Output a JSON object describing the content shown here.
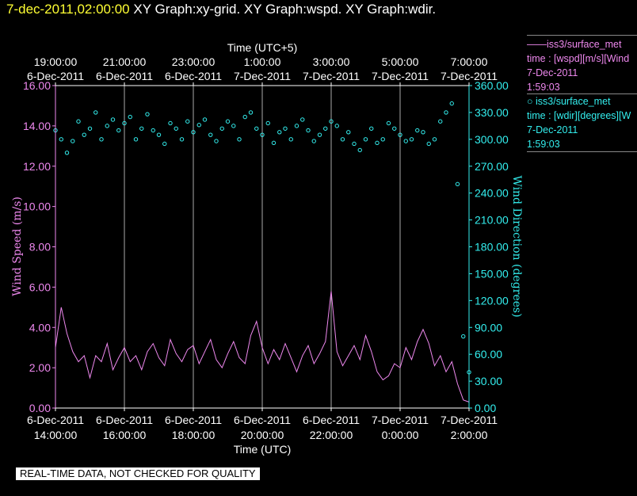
{
  "header": {
    "timestamp": "7-dec-2011,02:00:00",
    "graphs": "XY Graph:xy-grid.  XY Graph:wspd.  XY Graph:wdir."
  },
  "legend": {
    "speed": {
      "line1": "——iss3/surface_met",
      "line2": "time : [wspd][m/s][Wind",
      "line3": "7-Dec-2011",
      "line4": "1:59:03"
    },
    "direction": {
      "line1": "○ iss3/surface_met",
      "line2": "time : [wdir][degrees][W",
      "line3": "7-Dec-2011",
      "line4": "1:59:03"
    }
  },
  "disclaimer": "REAL-TIME DATA, NOT CHECKED FOR QUALITY",
  "colors": {
    "speed": "#ee88ee",
    "direction": "#33eeee",
    "grid": "#aaaaaa",
    "background": "#000000"
  },
  "chart_data": {
    "type": "line",
    "top_axis_title": "Time (UTC+5)",
    "top_ticks": [
      {
        "time": "19:00:00",
        "date": "6-Dec-2011"
      },
      {
        "time": "21:00:00",
        "date": "6-Dec-2011"
      },
      {
        "time": "23:00:00",
        "date": "6-Dec-2011"
      },
      {
        "time": "1:00:00",
        "date": "7-Dec-2011"
      },
      {
        "time": "3:00:00",
        "date": "7-Dec-2011"
      },
      {
        "time": "5:00:00",
        "date": "7-Dec-2011"
      },
      {
        "time": "7:00:00",
        "date": "7-Dec-2011"
      }
    ],
    "bottom_axis_title": "Time (UTC)",
    "bottom_ticks": [
      {
        "time": "14:00:00",
        "date": "6-Dec-2011"
      },
      {
        "time": "16:00:00",
        "date": "6-Dec-2011"
      },
      {
        "time": "18:00:00",
        "date": "6-Dec-2011"
      },
      {
        "time": "20:00:00",
        "date": "6-Dec-2011"
      },
      {
        "time": "22:00:00",
        "date": "6-Dec-2011"
      },
      {
        "time": "0:00:00",
        "date": "7-Dec-2011"
      },
      {
        "time": "2:00:00",
        "date": "7-Dec-2011"
      }
    ],
    "x_range": [
      "2011-12-06 14:00:00",
      "2011-12-07 02:00:00"
    ],
    "left_axis": {
      "label": "Wind Speed (m/s)",
      "range": [
        0,
        16
      ],
      "ticks": [
        "0.00",
        "2.00",
        "4.00",
        "6.00",
        "8.00",
        "10.00",
        "12.00",
        "14.00",
        "16.00"
      ]
    },
    "right_axis": {
      "label": "Wind Direction (degrees)",
      "range": [
        0,
        360
      ],
      "ticks": [
        "0.00",
        "30.00",
        "60.00",
        "90.00",
        "120.00",
        "150.00",
        "180.00",
        "210.00",
        "240.00",
        "270.00",
        "300.00",
        "330.00",
        "360.00"
      ]
    },
    "grid": "vertical",
    "series": [
      {
        "axis": "left",
        "style": "line",
        "x": [
          "2011-12-06 14:00",
          "2011-12-06 14:10",
          "2011-12-06 14:20",
          "2011-12-06 14:30",
          "2011-12-06 14:40",
          "2011-12-06 14:50",
          "2011-12-06 15:00",
          "2011-12-06 15:10",
          "2011-12-06 15:20",
          "2011-12-06 15:30",
          "2011-12-06 15:40",
          "2011-12-06 15:50",
          "2011-12-06 16:00",
          "2011-12-06 16:10",
          "2011-12-06 16:20",
          "2011-12-06 16:30",
          "2011-12-06 16:40",
          "2011-12-06 16:50",
          "2011-12-06 17:00",
          "2011-12-06 17:10",
          "2011-12-06 17:20",
          "2011-12-06 17:30",
          "2011-12-06 17:40",
          "2011-12-06 17:50",
          "2011-12-06 18:00",
          "2011-12-06 18:10",
          "2011-12-06 18:20",
          "2011-12-06 18:30",
          "2011-12-06 18:40",
          "2011-12-06 18:50",
          "2011-12-06 19:00",
          "2011-12-06 19:10",
          "2011-12-06 19:20",
          "2011-12-06 19:30",
          "2011-12-06 19:40",
          "2011-12-06 19:50",
          "2011-12-06 20:00",
          "2011-12-06 20:10",
          "2011-12-06 20:20",
          "2011-12-06 20:30",
          "2011-12-06 20:40",
          "2011-12-06 20:50",
          "2011-12-06 21:00",
          "2011-12-06 21:10",
          "2011-12-06 21:20",
          "2011-12-06 21:30",
          "2011-12-06 21:40",
          "2011-12-06 21:50",
          "2011-12-06 22:00",
          "2011-12-06 22:10",
          "2011-12-06 22:20",
          "2011-12-06 22:30",
          "2011-12-06 22:40",
          "2011-12-06 22:50",
          "2011-12-06 23:00",
          "2011-12-06 23:10",
          "2011-12-06 23:20",
          "2011-12-06 23:30",
          "2011-12-06 23:40",
          "2011-12-06 23:50",
          "2011-12-07 00:00",
          "2011-12-07 00:10",
          "2011-12-07 00:20",
          "2011-12-07 00:30",
          "2011-12-07 00:40",
          "2011-12-07 00:50",
          "2011-12-07 01:00",
          "2011-12-07 01:10",
          "2011-12-07 01:20",
          "2011-12-07 01:30",
          "2011-12-07 01:40",
          "2011-12-07 01:50",
          "2011-12-07 02:00"
        ],
        "y": [
          3.0,
          5.0,
          3.7,
          2.8,
          2.3,
          2.6,
          1.5,
          2.6,
          2.3,
          3.2,
          1.9,
          2.5,
          3.0,
          2.3,
          2.6,
          1.9,
          2.8,
          3.2,
          2.5,
          2.1,
          3.4,
          2.7,
          2.3,
          2.9,
          3.1,
          2.2,
          2.8,
          3.4,
          2.4,
          2.0,
          2.7,
          3.3,
          2.5,
          2.2,
          3.6,
          4.3,
          3.0,
          2.2,
          2.9,
          2.4,
          3.2,
          2.5,
          1.8,
          2.6,
          3.1,
          2.2,
          2.7,
          3.3,
          5.8,
          2.8,
          2.1,
          2.6,
          3.1,
          2.4,
          3.6,
          2.8,
          1.8,
          1.4,
          1.6,
          2.2,
          2.0,
          3.0,
          2.4,
          3.3,
          3.9,
          3.2,
          2.1,
          2.6,
          1.8,
          2.3,
          1.2,
          0.4,
          0.3
        ]
      },
      {
        "axis": "right",
        "style": "markers",
        "x": [
          "2011-12-06 14:00",
          "2011-12-06 14:10",
          "2011-12-06 14:20",
          "2011-12-06 14:30",
          "2011-12-06 14:40",
          "2011-12-06 14:50",
          "2011-12-06 15:00",
          "2011-12-06 15:10",
          "2011-12-06 15:20",
          "2011-12-06 15:30",
          "2011-12-06 15:40",
          "2011-12-06 15:50",
          "2011-12-06 16:00",
          "2011-12-06 16:10",
          "2011-12-06 16:20",
          "2011-12-06 16:30",
          "2011-12-06 16:40",
          "2011-12-06 16:50",
          "2011-12-06 17:00",
          "2011-12-06 17:10",
          "2011-12-06 17:20",
          "2011-12-06 17:30",
          "2011-12-06 17:40",
          "2011-12-06 17:50",
          "2011-12-06 18:00",
          "2011-12-06 18:10",
          "2011-12-06 18:20",
          "2011-12-06 18:30",
          "2011-12-06 18:40",
          "2011-12-06 18:50",
          "2011-12-06 19:00",
          "2011-12-06 19:10",
          "2011-12-06 19:20",
          "2011-12-06 19:30",
          "2011-12-06 19:40",
          "2011-12-06 19:50",
          "2011-12-06 20:00",
          "2011-12-06 20:10",
          "2011-12-06 20:20",
          "2011-12-06 20:30",
          "2011-12-06 20:40",
          "2011-12-06 20:50",
          "2011-12-06 21:00",
          "2011-12-06 21:10",
          "2011-12-06 21:20",
          "2011-12-06 21:30",
          "2011-12-06 21:40",
          "2011-12-06 21:50",
          "2011-12-06 22:00",
          "2011-12-06 22:10",
          "2011-12-06 22:20",
          "2011-12-06 22:30",
          "2011-12-06 22:40",
          "2011-12-06 22:50",
          "2011-12-06 23:00",
          "2011-12-06 23:10",
          "2011-12-06 23:20",
          "2011-12-06 23:30",
          "2011-12-06 23:40",
          "2011-12-06 23:50",
          "2011-12-07 00:00",
          "2011-12-07 00:10",
          "2011-12-07 00:20",
          "2011-12-07 00:30",
          "2011-12-07 00:40",
          "2011-12-07 00:50",
          "2011-12-07 01:00",
          "2011-12-07 01:10",
          "2011-12-07 01:20",
          "2011-12-07 01:30",
          "2011-12-07 01:40",
          "2011-12-07 01:50",
          "2011-12-07 02:00"
        ],
        "y": [
          310,
          300,
          285,
          298,
          320,
          305,
          312,
          330,
          300,
          315,
          322,
          310,
          318,
          325,
          300,
          312,
          328,
          310,
          305,
          295,
          318,
          312,
          300,
          320,
          308,
          316,
          322,
          305,
          298,
          312,
          320,
          315,
          300,
          325,
          330,
          312,
          305,
          318,
          296,
          308,
          312,
          300,
          315,
          322,
          310,
          298,
          305,
          312,
          320,
          315,
          300,
          308,
          295,
          288,
          300,
          312,
          296,
          300,
          318,
          312,
          305,
          298,
          300,
          310,
          308,
          295,
          300,
          320,
          330,
          340,
          250,
          80,
          40
        ]
      }
    ]
  }
}
